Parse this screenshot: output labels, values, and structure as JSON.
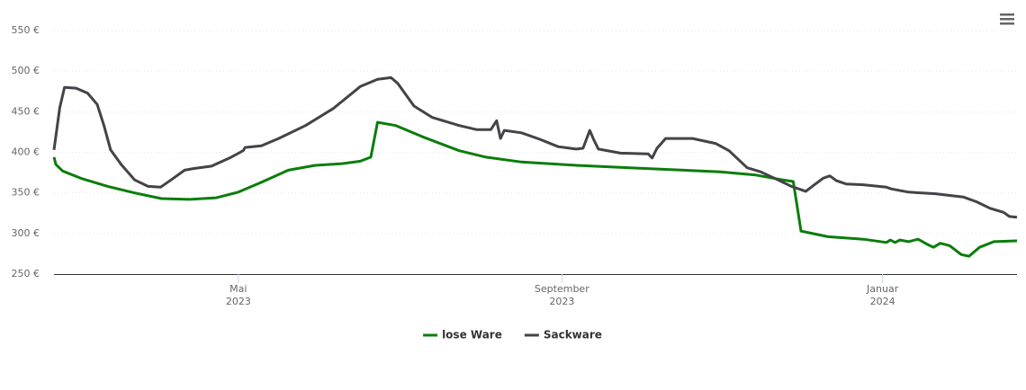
{
  "chart_data": {
    "type": "line",
    "xlim": [
      2023.137,
      2024.14
    ],
    "xticks": [
      {
        "value": 2023.329,
        "label": "Mai 2023"
      },
      {
        "value": 2023.666,
        "label": "September 2023"
      },
      {
        "value": 2024.0,
        "label": "Januar 2024"
      }
    ],
    "ylim": [
      250,
      550
    ],
    "yticks": [
      {
        "value": 250,
        "label": "250 €"
      },
      {
        "value": 300,
        "label": "300 €"
      },
      {
        "value": 350,
        "label": "350 €"
      },
      {
        "value": 400,
        "label": "400 €"
      },
      {
        "value": 450,
        "label": "450 €"
      },
      {
        "value": 500,
        "label": "500 €"
      },
      {
        "value": 550,
        "label": "550 €"
      }
    ],
    "grid": true,
    "legend": "bottom",
    "series": [
      {
        "name": "lose Ware",
        "color": "#0b7d0b",
        "x": [
          2023.137,
          2023.139,
          2023.146,
          2023.165,
          2023.193,
          2023.221,
          2023.249,
          2023.278,
          2023.306,
          2023.329,
          2023.353,
          2023.381,
          2023.409,
          2023.437,
          2023.456,
          2023.467,
          2023.474,
          2023.493,
          2023.521,
          2023.559,
          2023.587,
          2023.624,
          2023.681,
          2023.737,
          2023.793,
          2023.831,
          2023.868,
          2023.896,
          2023.907,
          2023.915,
          2023.943,
          2023.98,
          2024.004,
          2024.008,
          2024.013,
          2024.018,
          2024.027,
          2024.037,
          2024.046,
          2024.053,
          2024.06,
          2024.07,
          2024.082,
          2024.09,
          2024.101,
          2024.116,
          2024.14
        ],
        "values": [
          394,
          385,
          377,
          368,
          358,
          350,
          343,
          342,
          344,
          351,
          363,
          378,
          384,
          386,
          389,
          394,
          437,
          433,
          419,
          402,
          394,
          388,
          384,
          381,
          378,
          376,
          372,
          366,
          364,
          303,
          296,
          293,
          289,
          292,
          289,
          292,
          290,
          293,
          287,
          283,
          288,
          285,
          274,
          272,
          283,
          290,
          291
        ]
      },
      {
        "name": "Sackware",
        "color": "#434348",
        "x": [
          2023.137,
          2023.143,
          2023.148,
          2023.16,
          2023.172,
          2023.182,
          2023.189,
          2023.196,
          2023.207,
          2023.221,
          2023.235,
          2023.248,
          2023.259,
          2023.273,
          2023.282,
          2023.301,
          2023.32,
          2023.334,
          2023.336,
          2023.353,
          2023.371,
          2023.399,
          2023.428,
          2023.456,
          2023.474,
          2023.488,
          2023.495,
          2023.512,
          2023.531,
          2023.559,
          2023.577,
          2023.592,
          2023.598,
          2023.602,
          2023.606,
          2023.624,
          2023.643,
          2023.662,
          2023.681,
          2023.688,
          2023.695,
          2023.699,
          2023.704,
          2023.727,
          2023.756,
          2023.76,
          2023.765,
          2023.774,
          2023.802,
          2023.826,
          2023.84,
          2023.859,
          2023.873,
          2023.891,
          2023.905,
          2023.92,
          2023.929,
          2023.938,
          2023.945,
          2023.952,
          2023.962,
          2023.98,
          2024.004,
          2024.009,
          2024.027,
          2024.055,
          2024.084,
          2024.098,
          2024.112,
          2024.126,
          2024.132,
          2024.14
        ],
        "values": [
          403,
          455,
          480,
          479,
          473,
          459,
          433,
          403,
          385,
          366,
          358,
          357,
          366,
          378,
          380,
          383,
          393,
          402,
          406,
          408,
          417,
          433,
          454,
          481,
          490,
          492,
          485,
          457,
          443,
          433,
          428,
          428,
          439,
          417,
          427,
          424,
          416,
          407,
          404,
          405,
          427,
          416,
          404,
          399,
          398,
          393,
          405,
          417,
          417,
          411,
          402,
          381,
          376,
          366,
          358,
          352,
          360,
          368,
          371,
          365,
          361,
          360,
          357,
          355,
          351,
          349,
          345,
          339,
          331,
          326,
          321,
          320
        ]
      }
    ]
  }
}
